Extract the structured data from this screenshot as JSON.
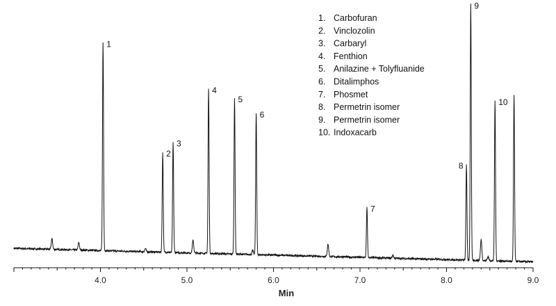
{
  "chart_data": {
    "type": "line",
    "xlabel": "Min",
    "ylabel": "",
    "xlim": [
      3.0,
      9.0
    ],
    "ylim": [
      0,
      100
    ],
    "xticks": [
      4.0,
      5.0,
      6.0,
      7.0,
      8.0,
      9.0
    ],
    "xtick_labels": [
      "4.0",
      "5.0",
      "6.0",
      "7.0",
      "8.0",
      "9.0"
    ],
    "baseline": {
      "start": 8.0,
      "end": 1.5
    },
    "line_color": "#111111",
    "peaks": [
      {
        "label": "1",
        "x": 4.03,
        "height": 100,
        "label_x": 4.07
      },
      {
        "label": "2",
        "x": 4.72,
        "height": 48,
        "label_x": 4.76
      },
      {
        "label": "3",
        "x": 4.84,
        "height": 53,
        "label_x": 4.88
      },
      {
        "label": "4",
        "x": 5.25,
        "height": 79,
        "label_x": 5.29
      },
      {
        "label": "5",
        "x": 5.55,
        "height": 75,
        "label_x": 5.59
      },
      {
        "label": "6",
        "x": 5.8,
        "height": 68,
        "label_x": 5.84
      },
      {
        "label": "7",
        "x": 7.08,
        "height": 24,
        "label_x": 7.12
      },
      {
        "label": "8",
        "x": 8.23,
        "height": 46,
        "label_x": 8.14
      },
      {
        "label": "9",
        "x": 8.28,
        "height": 123,
        "label_x": 8.32
      },
      {
        "label": "10",
        "x": 8.56,
        "height": 77,
        "label_x": 8.6
      },
      {
        "label": "",
        "x": 8.78,
        "height": 80,
        "label_x": 8.82
      }
    ],
    "minor_peaks": [
      {
        "x": 3.44,
        "height": 5
      },
      {
        "x": 3.75,
        "height": 3.5
      },
      {
        "x": 4.52,
        "height": 1.5
      },
      {
        "x": 5.07,
        "height": 6
      },
      {
        "x": 5.76,
        "height": 2
      },
      {
        "x": 6.63,
        "height": 6
      },
      {
        "x": 7.38,
        "height": 1.5
      },
      {
        "x": 8.4,
        "height": 10
      },
      {
        "x": 8.48,
        "height": 2
      }
    ],
    "legend_position": "top-right",
    "legend": [
      {
        "num": "1.",
        "name": "Carbofuran"
      },
      {
        "num": "2.",
        "name": "Vinclozolin"
      },
      {
        "num": "3.",
        "name": "Carbaryl"
      },
      {
        "num": "4.",
        "name": "Fenthion"
      },
      {
        "num": "5.",
        "name": "Anilazine + Tolyfluanide"
      },
      {
        "num": "6.",
        "name": "Ditalimphos"
      },
      {
        "num": "7.",
        "name": "Phosmet"
      },
      {
        "num": "8.",
        "name": "Permetrin isomer"
      },
      {
        "num": "9.",
        "name": "Permetrin isomer"
      },
      {
        "num": "10.",
        "name": "Indoxacarb"
      }
    ]
  }
}
